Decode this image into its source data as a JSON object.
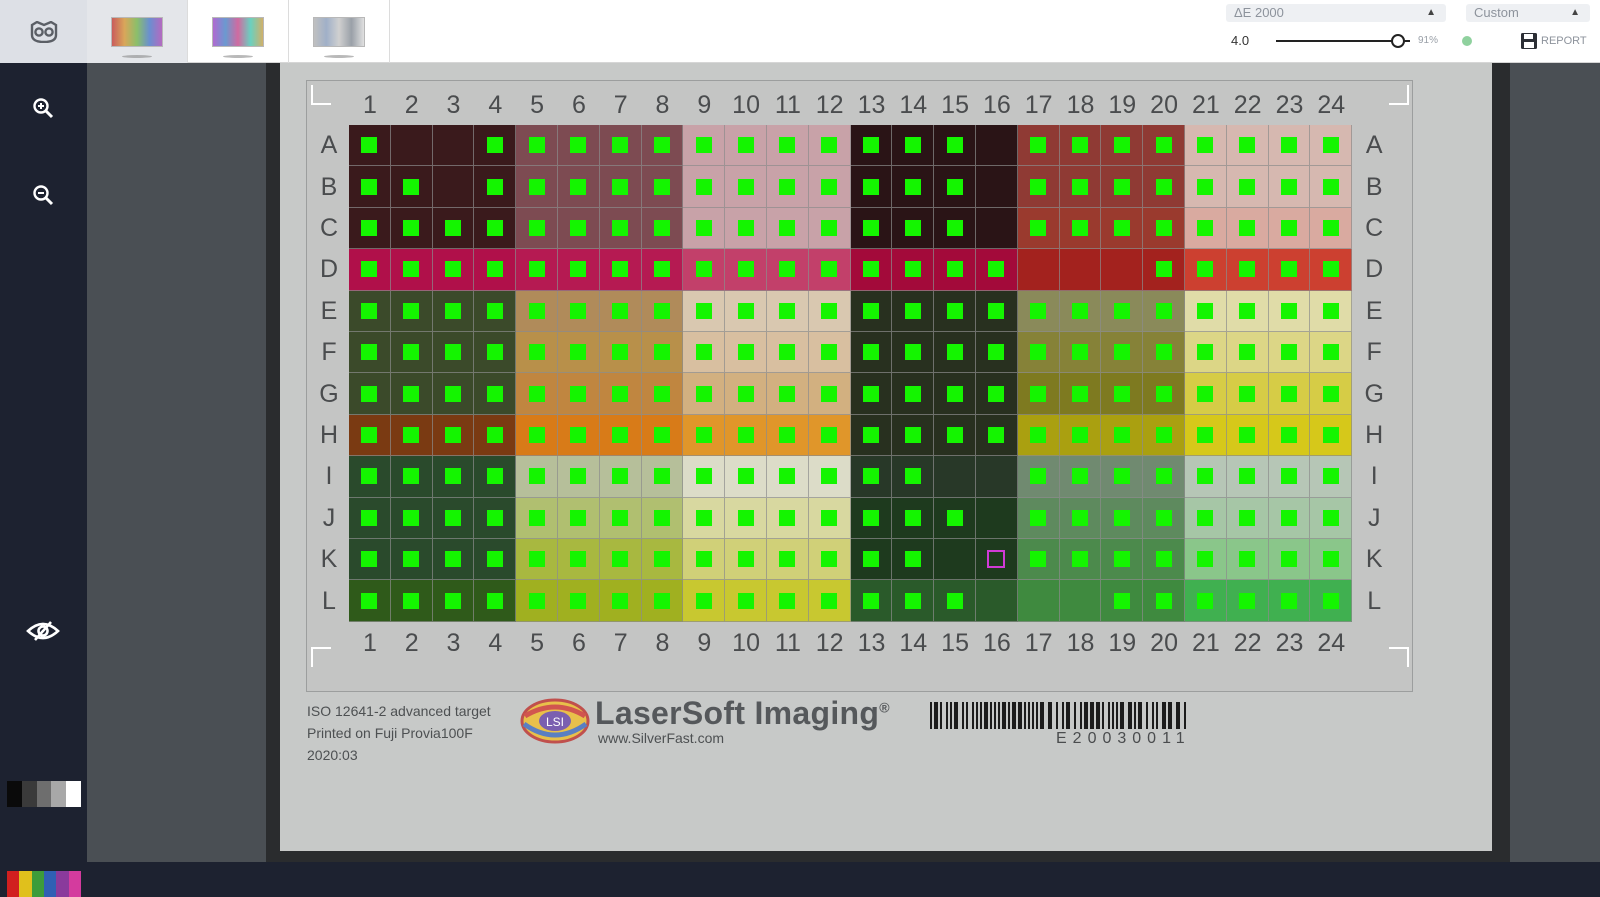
{
  "toolbar": {
    "owl_icon": "owl-icon",
    "thumbnails": [
      {
        "name": "target-thumb-1",
        "active": true
      },
      {
        "name": "target-thumb-2",
        "active": false
      },
      {
        "name": "target-thumb-3",
        "active": false
      }
    ],
    "delta_select": {
      "value": "ΔE 2000"
    },
    "preset_select": {
      "value": "Custom"
    },
    "tolerance": "4.0",
    "slider_value": 0.91,
    "percent": "91%",
    "status_color": "#8fd19e",
    "report_label": "REPORT"
  },
  "sidebar": {
    "zoom_in_icon": "zoom-in-icon",
    "zoom_out_icon": "zoom-out-icon",
    "eye_icon": "eye-slash-icon",
    "gray_strip": [
      "#0a0a0a",
      "#3a3a3a",
      "#6e6e6e",
      "#a8a8a8",
      "#ffffff"
    ],
    "color_strip": [
      "#d11f1f",
      "#e0c01c",
      "#3d9c3a",
      "#3060b4",
      "#8a3a9c",
      "#d43b9e"
    ]
  },
  "target": {
    "columns": [
      "1",
      "2",
      "3",
      "4",
      "5",
      "6",
      "7",
      "8",
      "9",
      "10",
      "11",
      "12",
      "13",
      "14",
      "15",
      "16",
      "17",
      "18",
      "19",
      "20",
      "21",
      "22",
      "23",
      "24"
    ],
    "rows": [
      "A",
      "B",
      "C",
      "D",
      "E",
      "F",
      "G",
      "H",
      "I",
      "J",
      "K",
      "L"
    ],
    "blocks": [
      [
        "#3a1a1c",
        "#7d4b52",
        "#c8a2a8",
        "#2a1416",
        "#8f3a34",
        "#d6b8b0"
      ],
      [
        "#3a1a1c",
        "#7d4b52",
        "#c8a2a8",
        "#2a1416",
        "#8f3a34",
        "#d6b8b0"
      ],
      [
        "#3a1a1c",
        "#7d4b52",
        "#c8a2a8",
        "#2a1416",
        "#9a3a2e",
        "#d9aaa0"
      ],
      [
        "#b0104a",
        "#b51a52",
        "#c2406a",
        "#a30a3a",
        "#a3221e",
        "#cc4030"
      ],
      [
        "#3b4a2a",
        "#b08b5a",
        "#d9c8b0",
        "#28301f",
        "#8a8a5a",
        "#e0dca8"
      ],
      [
        "#3b4a2a",
        "#b8904a",
        "#d8bfa0",
        "#28301f",
        "#868238",
        "#dcd686"
      ],
      [
        "#3b4a2a",
        "#c08640",
        "#d2b080",
        "#28301f",
        "#7e7a20",
        "#d6cc46"
      ],
      [
        "#7a3a12",
        "#d87b18",
        "#e0962a",
        "#28301f",
        "#aaa010",
        "#d6c81a"
      ],
      [
        "#2a4a2c",
        "#b6bf9a",
        "#dcdcc8",
        "#283828",
        "#708a70",
        "#b6c6b6"
      ],
      [
        "#2a4a2c",
        "#b0bf70",
        "#d8d8a0",
        "#1e3a1e",
        "#5e8a5e",
        "#a6c6a6"
      ],
      [
        "#2a4a2c",
        "#a8b840",
        "#d0d078",
        "#1e3a1e",
        "#4c8a4c",
        "#8ac68a"
      ],
      [
        "#2f5a1a",
        "#a0b020",
        "#c8c830",
        "#2a5a2a",
        "#3f8a3f",
        "#40b050"
      ]
    ],
    "missing_marks": [
      "A2",
      "A3",
      "B3",
      "A16",
      "B16",
      "C16",
      "D17",
      "D18",
      "D19",
      "I15",
      "I16",
      "J16",
      "K15",
      "L16",
      "L17",
      "L18"
    ],
    "failed_patch": "K16",
    "corner_marks": true
  },
  "slide_info": {
    "line1": "ISO 12641-2 advanced target",
    "line2": "Printed on Fuji Provia100F",
    "line3": "2020:03",
    "brand": "LaserSoft Imaging",
    "brand_mark": "®",
    "logo_text": "LSI",
    "url": "www.SilverFast.com",
    "barcode_text": "E20030011"
  }
}
